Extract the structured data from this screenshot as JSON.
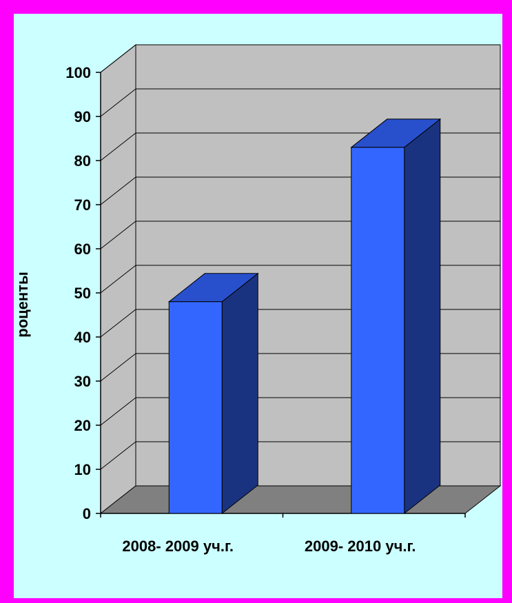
{
  "colors": {
    "frame": "#FF00FF",
    "background": "#CCFFFF",
    "wall": "#C0C0C0",
    "floor": "#808080",
    "bar_front": "#3366FF",
    "bar_top": "#2850CC",
    "bar_side": "#1A3380"
  },
  "chart_data": {
    "type": "bar",
    "style": "3d-column",
    "categories": [
      "2008- 2009 уч.г.",
      "2009- 2010 уч.г."
    ],
    "values": [
      48,
      83
    ],
    "ylabel": "роценты",
    "ylim": [
      0,
      100
    ],
    "yticks": [
      0,
      10,
      20,
      30,
      40,
      50,
      60,
      70,
      80,
      90,
      100
    ],
    "grid": true,
    "legend": "none"
  }
}
